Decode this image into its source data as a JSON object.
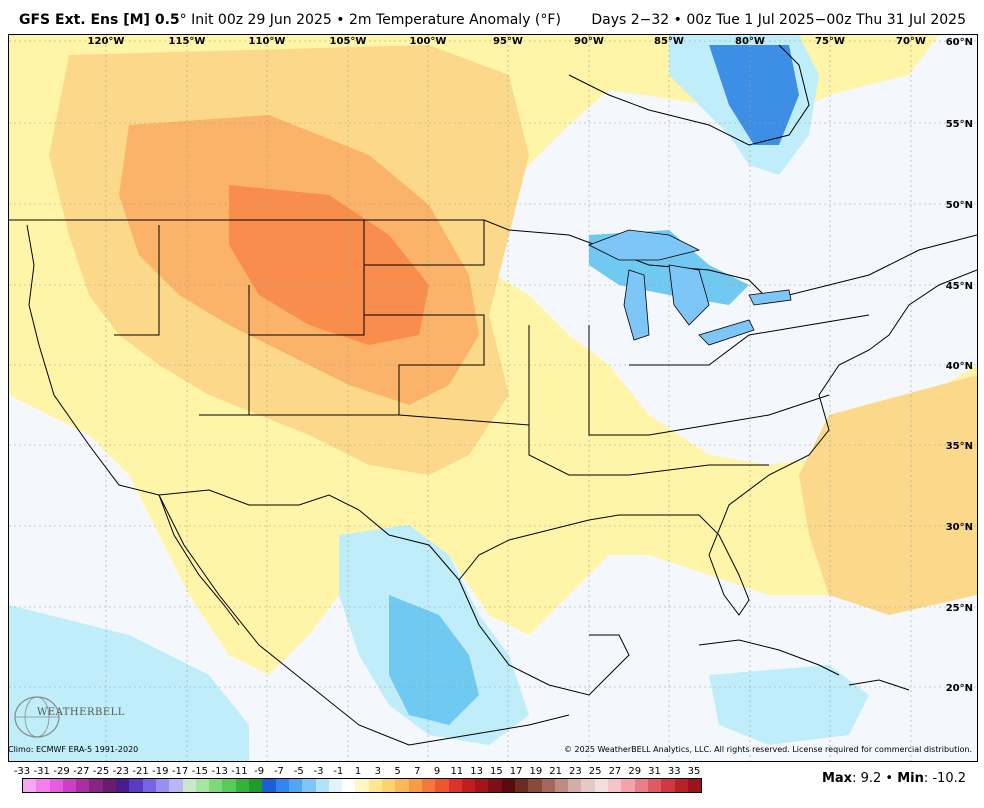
{
  "header": {
    "model": "GFS Ext.  Ens [M] 0.5",
    "degree_symbol": "°",
    "init": "Init 00z 29 Jun 2025",
    "bullet": "•",
    "field": "2m Temperature Anomaly (°F)",
    "valid": "Days 2−32 • 00z Tue 1 Jul 2025−00z Thu 31 Jul 2025"
  },
  "map": {
    "longitude_labels": [
      "120°W",
      "115°W",
      "110°W",
      "105°W",
      "100°W",
      "95°W",
      "90°W",
      "85°W",
      "80°W",
      "75°W",
      "70°W"
    ],
    "latitude_labels": [
      "60°N",
      "55°N",
      "50°N",
      "45°N",
      "40°N",
      "35°N",
      "30°N",
      "25°N",
      "20°N"
    ],
    "colors": {
      "ocean_neutral": "#f4f7fc",
      "warm_light": "#fff5a8",
      "warm_mid": "#fcd98a",
      "warm_orange": "#fbb36a",
      "warm_strong": "#f88d4c",
      "cool_light": "#bfeefa",
      "cool_mid": "#6fc9f0",
      "cool_strong": "#3d8fe6"
    }
  },
  "footer": {
    "climo": "Climo: ECMWF ERA-5 1991-2020",
    "copyright": "© 2025 WeatherBELL Analytics, LLC. All rights reserved. License required for commercial distribution.",
    "logo_text": "WEATHERBELL",
    "max_label": "Max",
    "max_value": ": 9.2",
    "separator": " • ",
    "min_label": "Min",
    "min_value": ": -10.2"
  },
  "colorbar": {
    "labels": [
      "-33",
      "-31",
      "-29",
      "-27",
      "-25",
      "-23",
      "-21",
      "-19",
      "-17",
      "-15",
      "-13",
      "-11",
      "-9",
      "-7",
      "-5",
      "-3",
      "-1",
      "1",
      "3",
      "5",
      "7",
      "9",
      "11",
      "13",
      "15",
      "17",
      "19",
      "21",
      "23",
      "25",
      "27",
      "29",
      "31",
      "33",
      "35"
    ],
    "colors": [
      "#f9a6f5",
      "#f37fef",
      "#e55ce0",
      "#cc3fc8",
      "#a92fa5",
      "#862586",
      "#6a1b6e",
      "#4b1a8c",
      "#5a3cc0",
      "#7a63e0",
      "#9a8ef0",
      "#b7b6f7",
      "#c9e8c8",
      "#a6e6a2",
      "#7fd97b",
      "#5acb58",
      "#34b336",
      "#1e9b2a",
      "#1a5fd6",
      "#2f86f0",
      "#52a7f5",
      "#7ec6f7",
      "#afe3f9",
      "#dff4fb",
      "#ffffff",
      "#fff7bf",
      "#fde992",
      "#fcd46d",
      "#fbb857",
      "#f99a45",
      "#f4783a",
      "#ec5630",
      "#dd3227",
      "#c41d1f",
      "#a3151a",
      "#7e0f14",
      "#5c0a0f",
      "#6e2c20",
      "#8a4a36",
      "#a6665a",
      "#bf8b80",
      "#d5aca6",
      "#e6c8c6",
      "#f3dede",
      "#f7c5c9",
      "#f2a4aa",
      "#ea7e86",
      "#df5a62",
      "#cf3a40",
      "#b82127",
      "#9c141a"
    ]
  }
}
